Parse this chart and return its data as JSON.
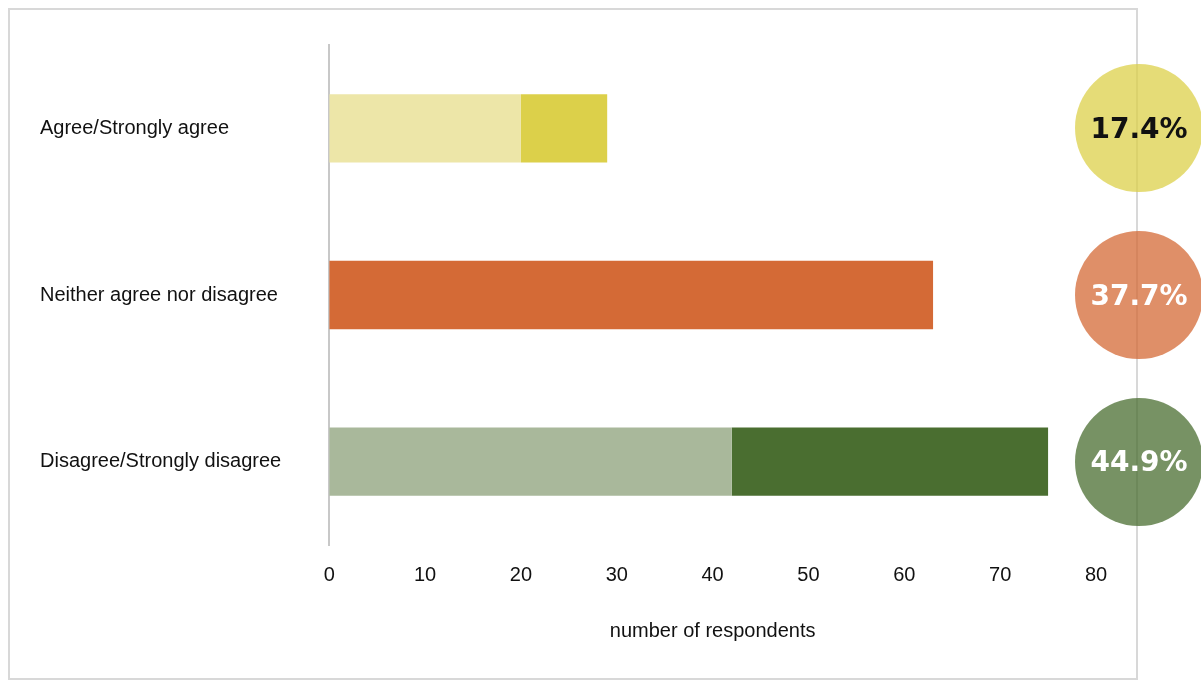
{
  "chart_data": {
    "type": "bar",
    "orientation": "horizontal",
    "stacked": true,
    "xlabel": "number of respondents",
    "categories": [
      "Agree/Strongly agree",
      "Neither agree nor disagree",
      "Disagree/Strongly disagree"
    ],
    "series": [
      {
        "colors": [
          "#ede6a8",
          "#d46a36",
          "#a9b89b"
        ],
        "values": [
          20,
          63,
          42
        ]
      },
      {
        "colors": [
          "#dcd04a",
          null,
          "#4a6e30"
        ],
        "values": [
          9,
          null,
          33
        ]
      }
    ],
    "xlim": [
      0,
      80
    ],
    "xticks": [
      0,
      10,
      20,
      30,
      40,
      50,
      60,
      70,
      80
    ],
    "grid": false,
    "legend": false,
    "annotations": [
      "17.4%",
      "37.7%",
      "44.9%"
    ]
  }
}
